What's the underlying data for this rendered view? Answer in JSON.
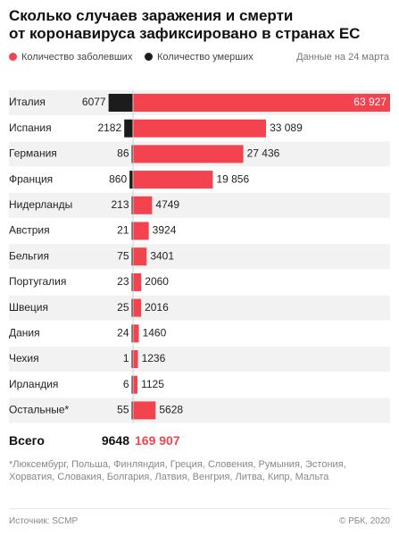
{
  "header": {
    "title_line1": "Сколько случаев заражения и смерти",
    "title_line2": "от коронавируса зафиксировано в странах ЕС"
  },
  "legend": {
    "cases_label": "Количество заболевших",
    "deaths_label": "Количество умерших",
    "date_note": "Данные на 24 марта"
  },
  "colors": {
    "cases": "#f2434e",
    "deaths": "#1c1c1c"
  },
  "chart_data": {
    "type": "bar",
    "orientation": "horizontal",
    "categories": [
      "Италия",
      "Испания",
      "Германия",
      "Франция",
      "Нидерланды",
      "Австрия",
      "Бельгия",
      "Португалия",
      "Швеция",
      "Дания",
      "Чехия",
      "Ирландия",
      "Остальные*"
    ],
    "series": [
      {
        "name": "Количество умерших",
        "values": [
          6077,
          2182,
          86,
          860,
          213,
          21,
          75,
          23,
          25,
          24,
          1,
          6,
          55
        ],
        "labels": [
          "6077",
          "2182",
          "86",
          "860",
          "213",
          "21",
          "75",
          "23",
          "25",
          "24",
          "1",
          "6",
          "55"
        ]
      },
      {
        "name": "Количество заболевших",
        "values": [
          63927,
          33089,
          27436,
          19856,
          4749,
          3924,
          3401,
          2060,
          2016,
          1460,
          1236,
          1125,
          5628
        ],
        "labels": [
          "63 927",
          "33 089",
          "27 436",
          "19 856",
          "4749",
          "3924",
          "3401",
          "2060",
          "2016",
          "1460",
          "1236",
          "1125",
          "5628"
        ]
      }
    ],
    "total": {
      "label": "Всего",
      "deaths": "9648",
      "cases": "169 907"
    }
  },
  "footnote": "*Люксембург, Польша, Финляндия, Греция, Словения, Румыния, Эстония, Хорватия, Словакия, Болгария, Латвия, Венгрия, Литва, Кипр, Мальта",
  "footer": {
    "source": "Источник: SCMP",
    "copyright": "© РБК, 2020"
  }
}
